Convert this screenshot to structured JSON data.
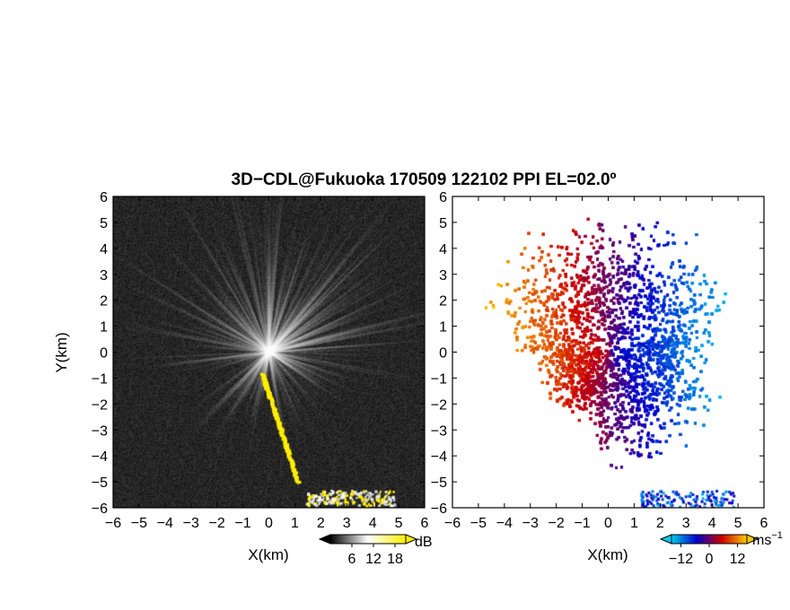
{
  "title": "3D−CDL@Fukuoka 170509 122102 PPI EL=02.0º",
  "ylabel": "Y(km)",
  "xlabel": "X(km)",
  "chart_data": [
    {
      "type": "heatmap",
      "panel": "reflectivity",
      "xlabel": "X(km)",
      "ylabel": "Y(km)",
      "xlim": [
        -6,
        6
      ],
      "ylim": [
        -6,
        6
      ],
      "xticks": [
        "−6",
        "−5",
        "−4",
        "−3",
        "−2",
        "−1",
        "0",
        "1",
        "2",
        "3",
        "4",
        "5",
        "6"
      ],
      "yticks": [
        "6",
        "5",
        "4",
        "3",
        "2",
        "1",
        "0",
        "−1",
        "−2",
        "−3",
        "−4",
        "−5",
        "−6"
      ],
      "colorbar": {
        "unit": "dB",
        "ticks": [
          "6",
          "12",
          "18"
        ],
        "range": [
          0,
          21
        ],
        "colors": [
          "#000000",
          "#ffffff",
          "#ffee00"
        ]
      }
    },
    {
      "type": "heatmap",
      "panel": "radial-velocity",
      "xlabel": "X(km)",
      "xlim": [
        -6,
        6
      ],
      "ylim": [
        -6,
        6
      ],
      "xticks": [
        "−6",
        "−5",
        "−4",
        "−3",
        "−2",
        "−1",
        "0",
        "1",
        "2",
        "3",
        "4",
        "5",
        "6"
      ],
      "yticks": [
        "6",
        "5",
        "4",
        "3",
        "2",
        "1",
        "0",
        "−1",
        "−2",
        "−3",
        "−4",
        "−5",
        "−6"
      ],
      "colorbar": {
        "unit": "ms",
        "unit_sup": "−1",
        "ticks": [
          "−12",
          "0",
          "12"
        ],
        "range": [
          -16,
          16
        ],
        "colors": [
          "#00ccee",
          "#0000cc",
          "#cc0000",
          "#ffcc00"
        ]
      }
    }
  ]
}
